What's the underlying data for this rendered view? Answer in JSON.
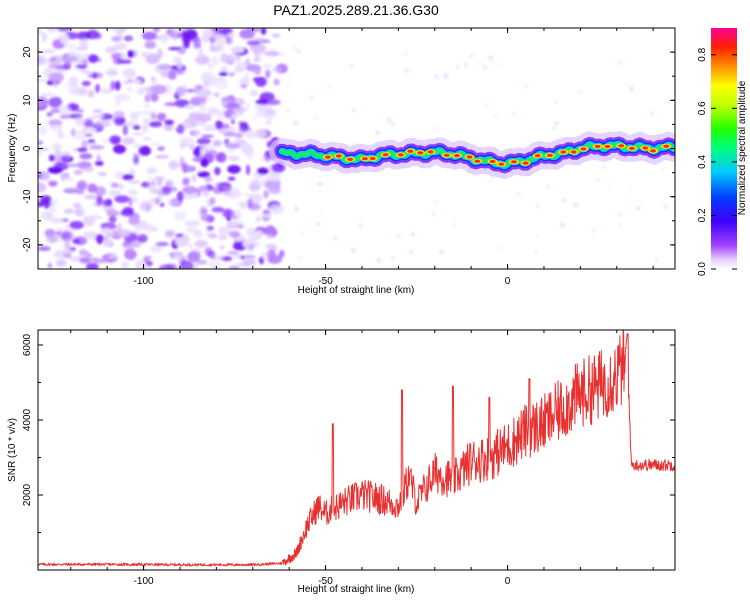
{
  "title": "PAZ1.2025.289.21.36.G30",
  "chart_data": [
    {
      "type": "heatmap",
      "name": "spectrogram",
      "xlabel": "Height of straight line (km)",
      "ylabel": "Frequency (Hz)",
      "xlim": [
        -129,
        46
      ],
      "ylim": [
        -25,
        25
      ],
      "xticks": [
        -100,
        -50,
        0
      ],
      "yticks": [
        -20,
        -10,
        0,
        10,
        20
      ],
      "noise_region_x": [
        -129,
        -62
      ],
      "signal_ridge": {
        "x": [
          -62,
          -55,
          -50,
          -45,
          -40,
          -35,
          -30,
          -25,
          -20,
          -15,
          -10,
          -5,
          0,
          5,
          10,
          15,
          20,
          25,
          30,
          35,
          40,
          46
        ],
        "freq": [
          -1.0,
          -1.2,
          -1.5,
          -2.0,
          -2.3,
          -1.5,
          -1.2,
          -1.0,
          -0.8,
          -1.2,
          -2.0,
          -2.8,
          -3.2,
          -2.5,
          -1.5,
          -1.0,
          0.0,
          0.5,
          0.5,
          0.2,
          0.0,
          0.3
        ]
      },
      "colorbar": {
        "label": "Normalized spectral amplitude",
        "range": [
          0,
          0.9
        ],
        "ticks": [
          0.0,
          0.2,
          0.4,
          0.6,
          0.8
        ]
      }
    },
    {
      "type": "line",
      "name": "snr",
      "xlabel": "Height of straight line (km)",
      "ylabel": "SNR (10 * v/v)",
      "xlim": [
        -129,
        46
      ],
      "ylim": [
        0,
        6400
      ],
      "xticks": [
        -100,
        -50,
        0
      ],
      "yticks": [
        2000,
        4000,
        6000
      ],
      "color": "#e83030",
      "series": [
        {
          "name": "SNR",
          "x": [
            -129,
            -110,
            -90,
            -70,
            -62,
            -58,
            -55,
            -52,
            -50,
            -45,
            -40,
            -35,
            -30,
            -27,
            -25,
            -20,
            -15,
            -10,
            -5,
            0,
            5,
            10,
            15,
            20,
            25,
            30,
            33,
            34,
            40,
            46
          ],
          "y": [
            150,
            150,
            140,
            140,
            180,
            450,
            1200,
            1700,
            1500,
            1800,
            2000,
            1900,
            1700,
            2500,
            1800,
            2600,
            2400,
            2900,
            3000,
            3300,
            3700,
            3900,
            4300,
            4700,
            4900,
            5200,
            5600,
            2800,
            2800,
            2800
          ]
        }
      ],
      "peaks": {
        "x": [
          -48,
          -29,
          -15,
          -5,
          6,
          33
        ],
        "y": [
          3900,
          4800,
          4900,
          4600,
          5100,
          6300
        ]
      }
    }
  ]
}
